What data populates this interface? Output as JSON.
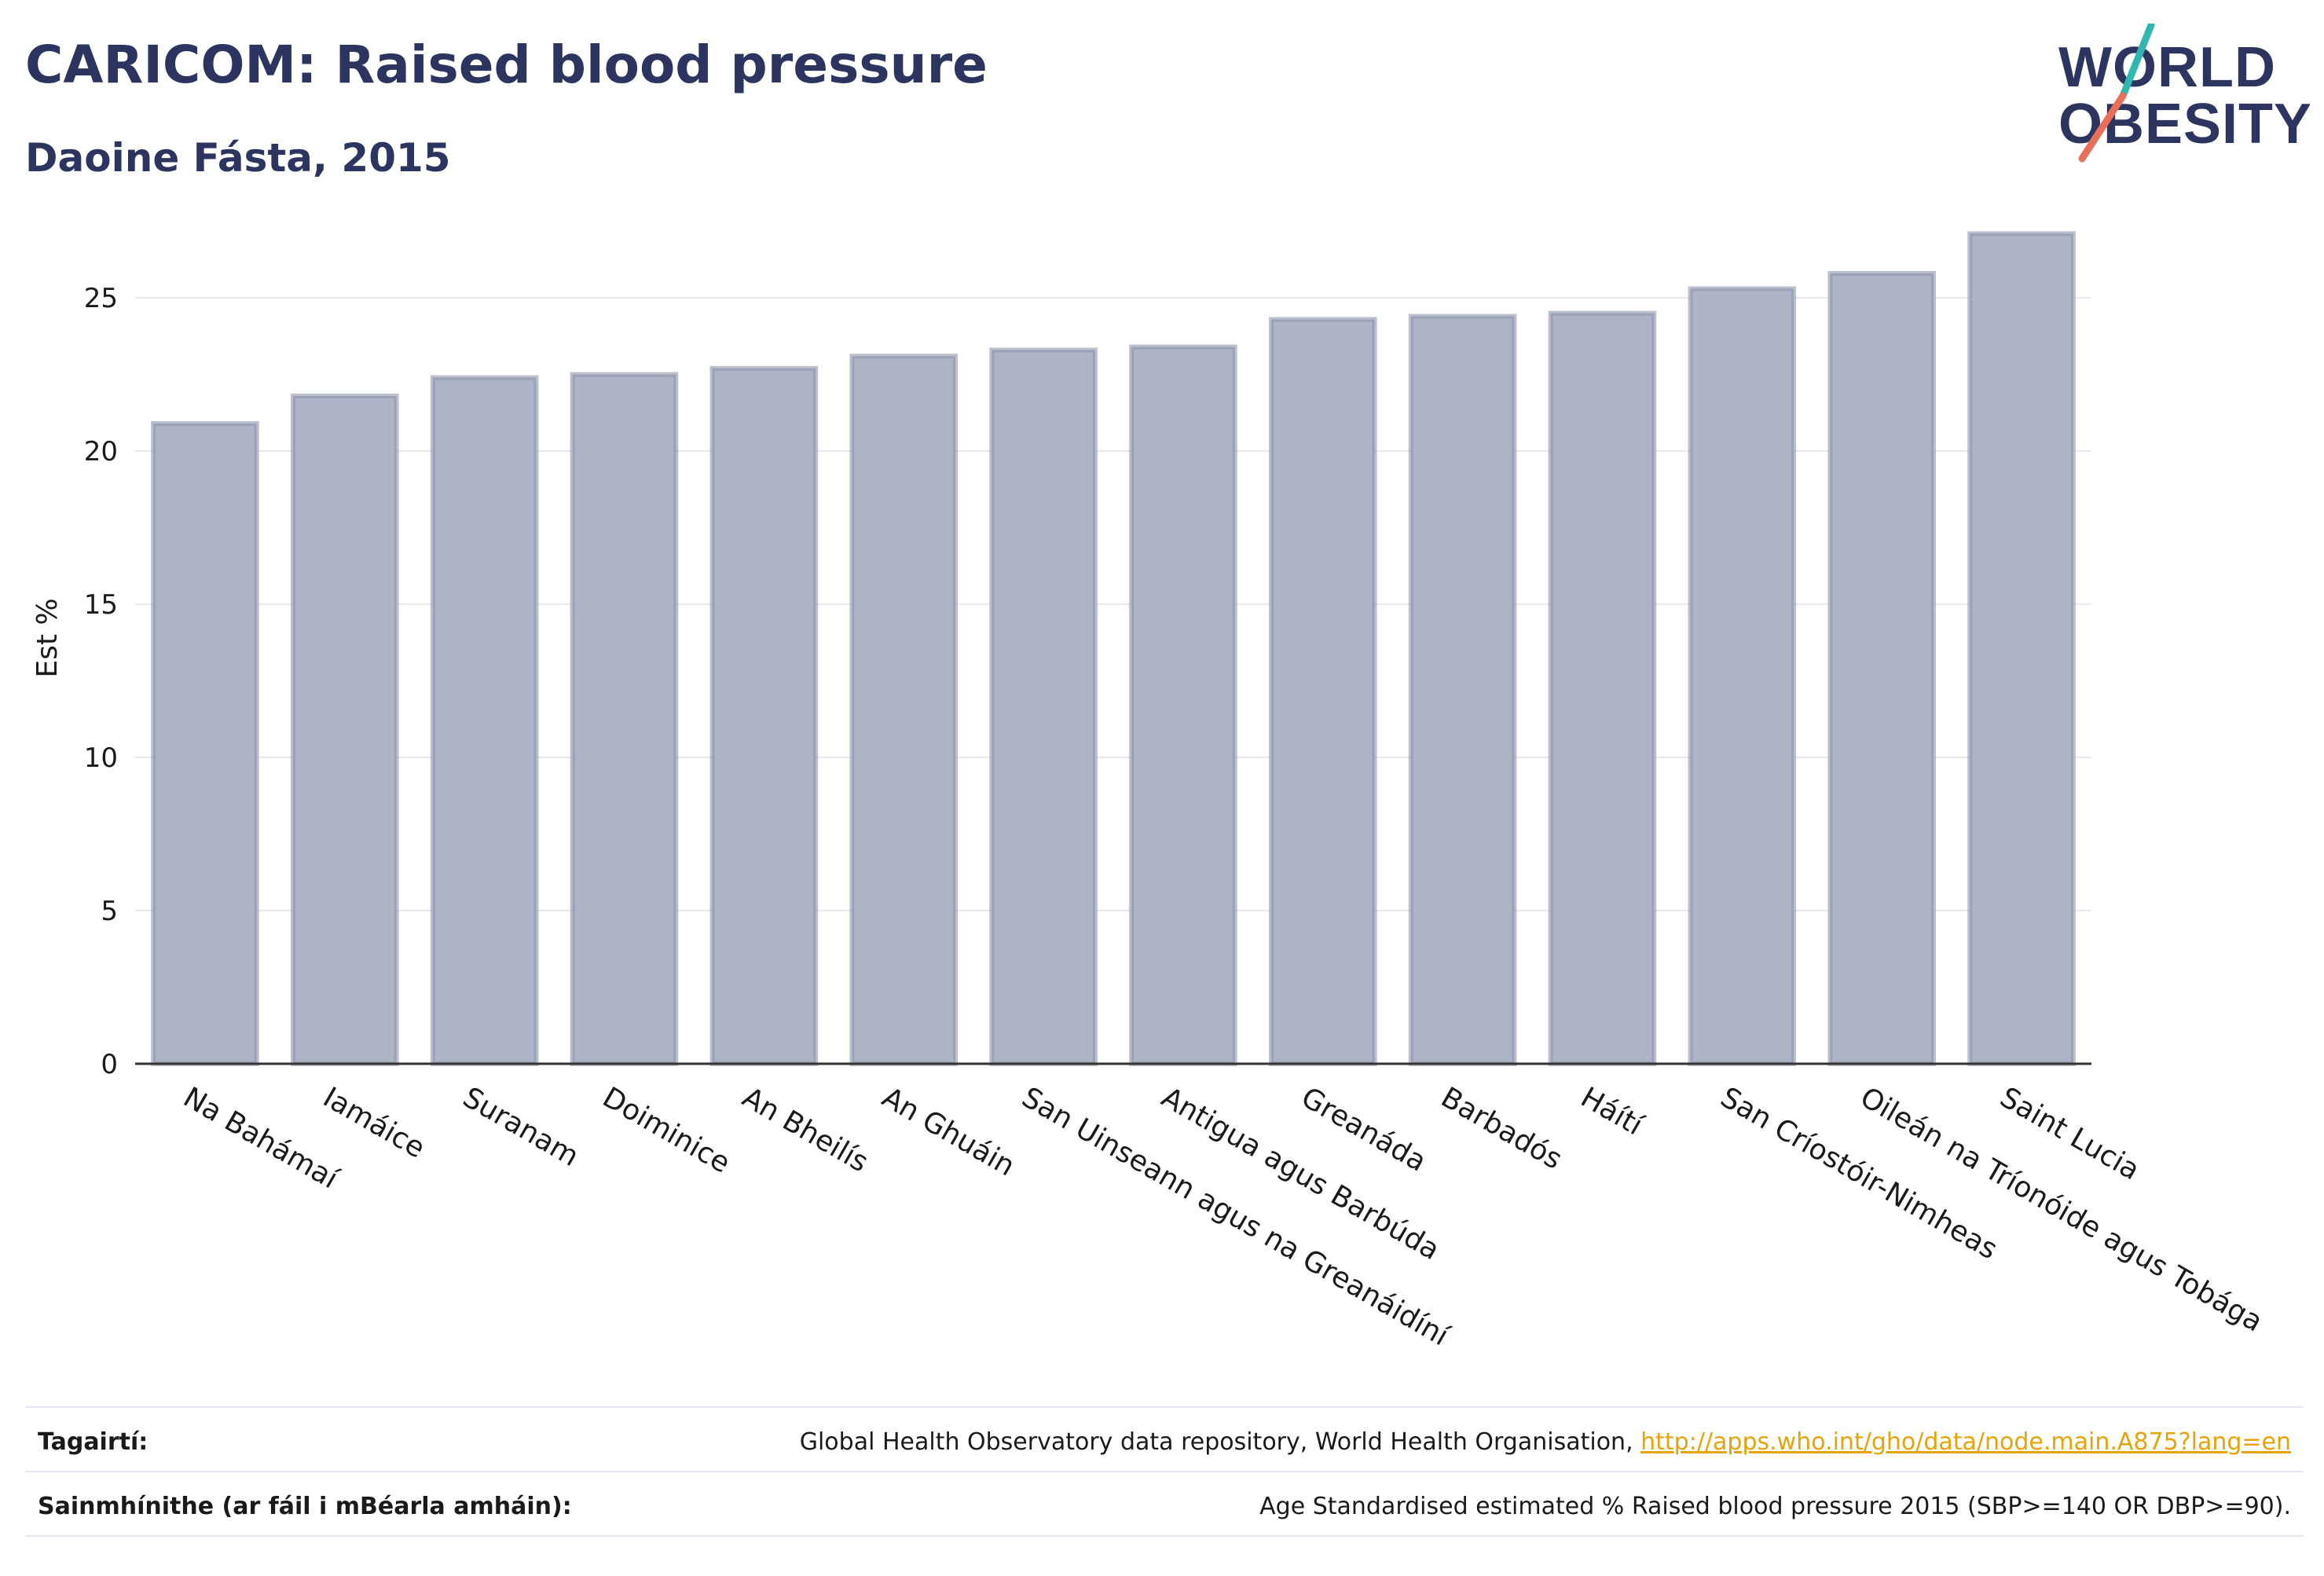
{
  "header": {
    "title": "CARICOM: Raised blood pressure",
    "subtitle": "Daoine Fásta, 2015"
  },
  "logo": {
    "line1": "WORLD",
    "line2": "OBESITY",
    "icon": "world-obesity-logo"
  },
  "chart_data": {
    "type": "bar",
    "title": "CARICOM: Raised blood pressure",
    "subtitle": "Daoine Fásta, 2015",
    "xlabel": "",
    "ylabel": "Est %",
    "ylim": [
      0,
      27.8
    ],
    "yticks": [
      0,
      5,
      10,
      15,
      20,
      25
    ],
    "grid": true,
    "bar_color": "#aeb3c5",
    "bar_edge_color": "#8e94ad",
    "categories": [
      "Na Bahámaí",
      "Iamáice",
      "Suranam",
      "Doiminice",
      "An Bheilís",
      "An Ghuáin",
      "San Uinseann agus na Greanáidíní",
      "Antigua agus Barbúda",
      "Greanáda",
      "Barbadós",
      "Háítí",
      "San Críostóir-Nimheas",
      "Oileán na Tríonóide agus Tobága",
      "Saint Lucia"
    ],
    "values": [
      20.9,
      21.8,
      22.4,
      22.5,
      22.7,
      23.1,
      23.3,
      23.4,
      24.3,
      24.4,
      24.5,
      25.3,
      25.8,
      27.1
    ]
  },
  "footer": {
    "references_label": "Tagairtí:",
    "references_text": "Global Health Observatory data repository, World Health Organisation, ",
    "references_link": "http://apps.who.int/gho/data/node.main.A875?lang=en",
    "definitions_label": "Sainmhínithe (ar fáil i mBéarla amháin):",
    "definitions_text": "Age Standardised estimated % Raised blood pressure 2015 (SBP>=140 OR DBP>=90)."
  }
}
